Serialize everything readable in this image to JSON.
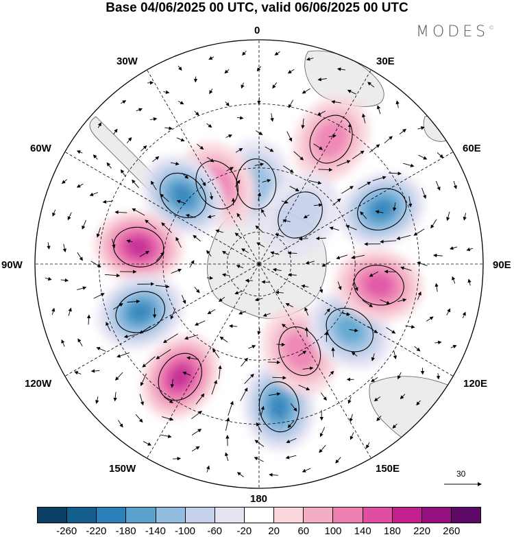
{
  "title": "Base 04/06/2025 00 UTC, valid 06/06/2025 00 UTC",
  "brand": {
    "name": "MODES",
    "mark": "©"
  },
  "longitude_labels": {
    "top": "0",
    "w30": "30W",
    "e30": "30E",
    "w60": "60W",
    "e60": "60E",
    "w90": "90W",
    "e90": "90E",
    "w120": "120W",
    "e120": "120E",
    "w150": "150W",
    "e150": "150E",
    "bottom": "180"
  },
  "reference_vector": {
    "label": "30"
  },
  "colorbar": {
    "colors": [
      "#0b3f63",
      "#155f8f",
      "#2a80b9",
      "#5aa3cf",
      "#93bde0",
      "#c5d0ea",
      "#e6e4f3",
      "#ffffff",
      "#f9d6dc",
      "#f4aec4",
      "#ee7fb1",
      "#e04ea1",
      "#c2208f",
      "#941080",
      "#5d0a66"
    ],
    "tick_labels": [
      "-260",
      "-220",
      "-180",
      "-140",
      "-100",
      "-60",
      "-20",
      "20",
      "60",
      "100",
      "140",
      "180",
      "220",
      "260"
    ]
  },
  "anomalies": [
    {
      "kind": "neg",
      "lat": -65,
      "lon": -2,
      "intensity": 0.45
    },
    {
      "kind": "pos",
      "lat": -62,
      "lon": -28,
      "intensity": 0.55
    },
    {
      "kind": "neg",
      "lat": -58,
      "lon": -48,
      "intensity": 0.75
    },
    {
      "kind": "pos",
      "lat": -52,
      "lon": -82,
      "intensity": 0.85
    },
    {
      "kind": "neg",
      "lat": -50,
      "lon": -112,
      "intensity": 0.8
    },
    {
      "kind": "pos",
      "lat": -47,
      "lon": -145,
      "intensity": 0.85
    },
    {
      "kind": "neg",
      "lat": -45,
      "lon": 172,
      "intensity": 0.75
    },
    {
      "kind": "pos",
      "lat": -60,
      "lon": 155,
      "intensity": 0.5
    },
    {
      "kind": "neg",
      "lat": -55,
      "lon": 126,
      "intensity": 0.6
    },
    {
      "kind": "pos",
      "lat": -52,
      "lon": 100,
      "intensity": 0.65
    },
    {
      "kind": "neg",
      "lat": -48,
      "lon": 66,
      "intensity": 0.8
    },
    {
      "kind": "pos",
      "lat": -45,
      "lon": 30,
      "intensity": 0.55
    },
    {
      "kind": "neg",
      "lat": -70,
      "lon": 40,
      "intensity": 0.25
    }
  ]
}
